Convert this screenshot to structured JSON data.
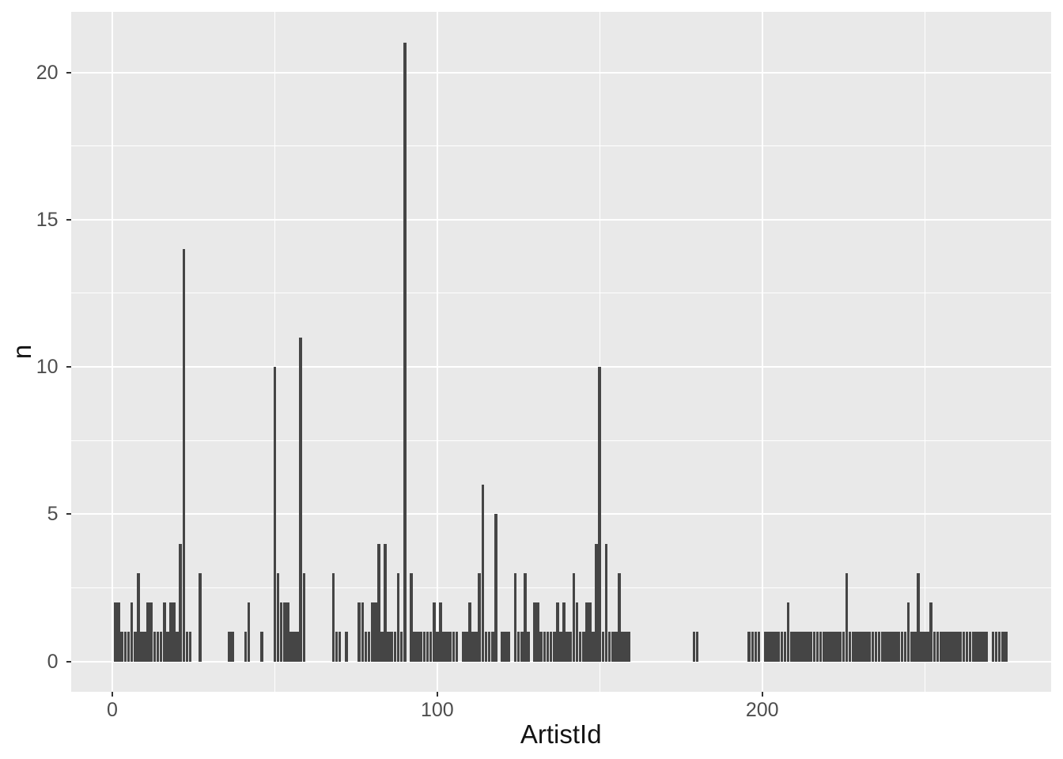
{
  "chart_data": {
    "type": "bar",
    "title": "",
    "xlabel": "ArtistId",
    "ylabel": "n",
    "x_ticks": [
      0,
      100,
      200
    ],
    "x_minor_ticks": [
      50,
      150,
      250
    ],
    "y_ticks": [
      0,
      5,
      10,
      15,
      20
    ],
    "y_minor_ticks": [
      2.5,
      7.5,
      12.5,
      17.5
    ],
    "xlim": [
      -12.7,
      288.9
    ],
    "ylim": [
      -1.05,
      22.05
    ],
    "bar_width": 0.9,
    "legend": "none",
    "grid": "on",
    "points": [
      [
        1,
        2
      ],
      [
        2,
        2
      ],
      [
        3,
        1
      ],
      [
        4,
        1
      ],
      [
        5,
        1
      ],
      [
        6,
        2
      ],
      [
        7,
        1
      ],
      [
        8,
        3
      ],
      [
        9,
        1
      ],
      [
        10,
        1
      ],
      [
        11,
        2
      ],
      [
        12,
        2
      ],
      [
        13,
        1
      ],
      [
        14,
        1
      ],
      [
        15,
        1
      ],
      [
        16,
        2
      ],
      [
        17,
        1
      ],
      [
        18,
        2
      ],
      [
        19,
        2
      ],
      [
        20,
        1
      ],
      [
        21,
        4
      ],
      [
        22,
        14
      ],
      [
        23,
        1
      ],
      [
        24,
        1
      ],
      [
        27,
        3
      ],
      [
        36,
        1
      ],
      [
        37,
        1
      ],
      [
        41,
        1
      ],
      [
        42,
        2
      ],
      [
        46,
        1
      ],
      [
        50,
        10
      ],
      [
        51,
        3
      ],
      [
        52,
        2
      ],
      [
        53,
        2
      ],
      [
        54,
        2
      ],
      [
        55,
        1
      ],
      [
        56,
        1
      ],
      [
        57,
        1
      ],
      [
        58,
        11
      ],
      [
        59,
        3
      ],
      [
        68,
        3
      ],
      [
        69,
        1
      ],
      [
        70,
        1
      ],
      [
        72,
        1
      ],
      [
        76,
        2
      ],
      [
        77,
        2
      ],
      [
        78,
        1
      ],
      [
        79,
        1
      ],
      [
        80,
        2
      ],
      [
        81,
        2
      ],
      [
        82,
        4
      ],
      [
        83,
        1
      ],
      [
        84,
        4
      ],
      [
        85,
        1
      ],
      [
        86,
        1
      ],
      [
        87,
        1
      ],
      [
        88,
        3
      ],
      [
        89,
        1
      ],
      [
        90,
        21
      ],
      [
        92,
        3
      ],
      [
        93,
        1
      ],
      [
        94,
        1
      ],
      [
        95,
        1
      ],
      [
        96,
        1
      ],
      [
        97,
        1
      ],
      [
        98,
        1
      ],
      [
        99,
        2
      ],
      [
        100,
        1
      ],
      [
        101,
        2
      ],
      [
        102,
        1
      ],
      [
        103,
        1
      ],
      [
        104,
        1
      ],
      [
        105,
        1
      ],
      [
        106,
        1
      ],
      [
        108,
        1
      ],
      [
        109,
        1
      ],
      [
        110,
        2
      ],
      [
        111,
        1
      ],
      [
        112,
        1
      ],
      [
        113,
        3
      ],
      [
        114,
        6
      ],
      [
        115,
        1
      ],
      [
        116,
        1
      ],
      [
        117,
        1
      ],
      [
        118,
        5
      ],
      [
        120,
        1
      ],
      [
        121,
        1
      ],
      [
        122,
        1
      ],
      [
        124,
        3
      ],
      [
        125,
        1
      ],
      [
        126,
        1
      ],
      [
        127,
        3
      ],
      [
        128,
        1
      ],
      [
        130,
        2
      ],
      [
        131,
        2
      ],
      [
        132,
        1
      ],
      [
        133,
        1
      ],
      [
        134,
        1
      ],
      [
        135,
        1
      ],
      [
        136,
        1
      ],
      [
        137,
        2
      ],
      [
        138,
        1
      ],
      [
        139,
        2
      ],
      [
        140,
        1
      ],
      [
        141,
        1
      ],
      [
        142,
        3
      ],
      [
        143,
        2
      ],
      [
        144,
        1
      ],
      [
        145,
        1
      ],
      [
        146,
        2
      ],
      [
        147,
        2
      ],
      [
        148,
        1
      ],
      [
        149,
        4
      ],
      [
        150,
        10
      ],
      [
        151,
        1
      ],
      [
        152,
        4
      ],
      [
        153,
        1
      ],
      [
        154,
        1
      ],
      [
        155,
        1
      ],
      [
        156,
        3
      ],
      [
        157,
        1
      ],
      [
        158,
        1
      ],
      [
        159,
        1
      ],
      [
        179,
        1
      ],
      [
        180,
        1
      ],
      [
        196,
        1
      ],
      [
        197,
        1
      ],
      [
        198,
        1
      ],
      [
        199,
        1
      ],
      [
        201,
        1
      ],
      [
        202,
        1
      ],
      [
        203,
        1
      ],
      [
        204,
        1
      ],
      [
        205,
        1
      ],
      [
        206,
        1
      ],
      [
        207,
        1
      ],
      [
        208,
        2
      ],
      [
        209,
        1
      ],
      [
        210,
        1
      ],
      [
        211,
        1
      ],
      [
        212,
        1
      ],
      [
        213,
        1
      ],
      [
        214,
        1
      ],
      [
        215,
        1
      ],
      [
        216,
        1
      ],
      [
        217,
        1
      ],
      [
        218,
        1
      ],
      [
        219,
        1
      ],
      [
        220,
        1
      ],
      [
        221,
        1
      ],
      [
        222,
        1
      ],
      [
        223,
        1
      ],
      [
        224,
        1
      ],
      [
        225,
        1
      ],
      [
        226,
        3
      ],
      [
        227,
        1
      ],
      [
        228,
        1
      ],
      [
        229,
        1
      ],
      [
        230,
        1
      ],
      [
        231,
        1
      ],
      [
        232,
        1
      ],
      [
        233,
        1
      ],
      [
        234,
        1
      ],
      [
        235,
        1
      ],
      [
        236,
        1
      ],
      [
        237,
        1
      ],
      [
        238,
        1
      ],
      [
        239,
        1
      ],
      [
        240,
        1
      ],
      [
        241,
        1
      ],
      [
        242,
        1
      ],
      [
        243,
        1
      ],
      [
        244,
        1
      ],
      [
        245,
        2
      ],
      [
        246,
        1
      ],
      [
        247,
        1
      ],
      [
        248,
        3
      ],
      [
        249,
        1
      ],
      [
        250,
        1
      ],
      [
        251,
        1
      ],
      [
        252,
        2
      ],
      [
        253,
        1
      ],
      [
        254,
        1
      ],
      [
        255,
        1
      ],
      [
        256,
        1
      ],
      [
        257,
        1
      ],
      [
        258,
        1
      ],
      [
        259,
        1
      ],
      [
        260,
        1
      ],
      [
        261,
        1
      ],
      [
        262,
        1
      ],
      [
        263,
        1
      ],
      [
        264,
        1
      ],
      [
        265,
        1
      ],
      [
        266,
        1
      ],
      [
        267,
        1
      ],
      [
        268,
        1
      ],
      [
        269,
        1
      ],
      [
        271,
        1
      ],
      [
        272,
        1
      ],
      [
        273,
        1
      ],
      [
        274,
        1
      ],
      [
        275,
        1
      ]
    ]
  },
  "style": {
    "panel_bg": "#e9e9e9",
    "grid_color": "#ffffff",
    "bar_color": "#454545",
    "tick_color": "#333333",
    "tick_label_color": "#4d4d4d",
    "axis_title_color": "#141414"
  }
}
